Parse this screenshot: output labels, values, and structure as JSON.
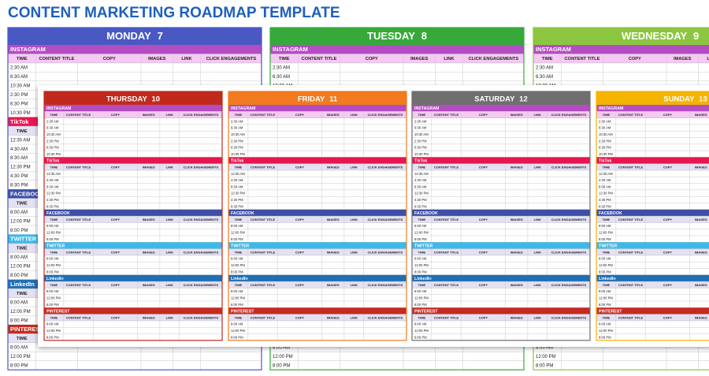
{
  "title": "CONTENT MARKETING ROADMAP TEMPLATE",
  "columns": [
    "TIME",
    "CONTENT TITLE",
    "COPY",
    "IMAGES",
    "LINK",
    "CLICK ENGAGEMENTS"
  ],
  "sections": [
    {
      "name": "INSTAGRAM",
      "color": "#b44cc2",
      "header_color": "#f5c9f3",
      "times": [
        "2:30 AM",
        "6:30 AM",
        "10:30 AM",
        "2:30 PM",
        "6:30 PM",
        "10:30 PM"
      ]
    },
    {
      "name": "TikTok",
      "color": "#e8164f",
      "header_color": "#e4e1f2",
      "times": [
        "12:30 AM",
        "4:30 AM",
        "8:30 AM",
        "12:30 PM",
        "4:30 PM",
        "8:30 PM"
      ]
    },
    {
      "name": "FACEBOOK",
      "color": "#3c4fa6",
      "header_color": "#e4e1f2",
      "times": [
        "8:00 AM",
        "12:00 PM",
        "8:00 PM"
      ]
    },
    {
      "name": "TWITTER",
      "color": "#3db8e8",
      "header_color": "#e4e1f2",
      "times": [
        "8:00 AM",
        "12:00 PM",
        "8:00 PM"
      ]
    },
    {
      "name": "LinkedIn",
      "color": "#1f6fb5",
      "header_color": "#e4e1f2",
      "times": [
        "8:00 AM",
        "12:00 PM",
        "8:00 PM"
      ]
    },
    {
      "name": "PINTEREST",
      "color": "#c62a1f",
      "header_color": "#e4e1f2",
      "times": [
        "8:00 AM",
        "12:00 PM",
        "8:00 PM"
      ]
    }
  ],
  "days": [
    {
      "name": "MONDAY",
      "date": "7",
      "color": "#4a58c4"
    },
    {
      "name": "TUESDAY",
      "date": "8",
      "color": "#36a93a"
    },
    {
      "name": "WEDNESDAY",
      "date": "9",
      "color": "#8cc640"
    },
    {
      "name": "THURSDAY",
      "date": "10",
      "color": "#c2291d"
    },
    {
      "name": "FRIDAY",
      "date": "11",
      "color": "#f27a1f"
    },
    {
      "name": "SATURDAY",
      "date": "12",
      "color": "#6f6f6f"
    },
    {
      "name": "SUNDAY",
      "date": "13",
      "color": "#f5b400"
    }
  ]
}
